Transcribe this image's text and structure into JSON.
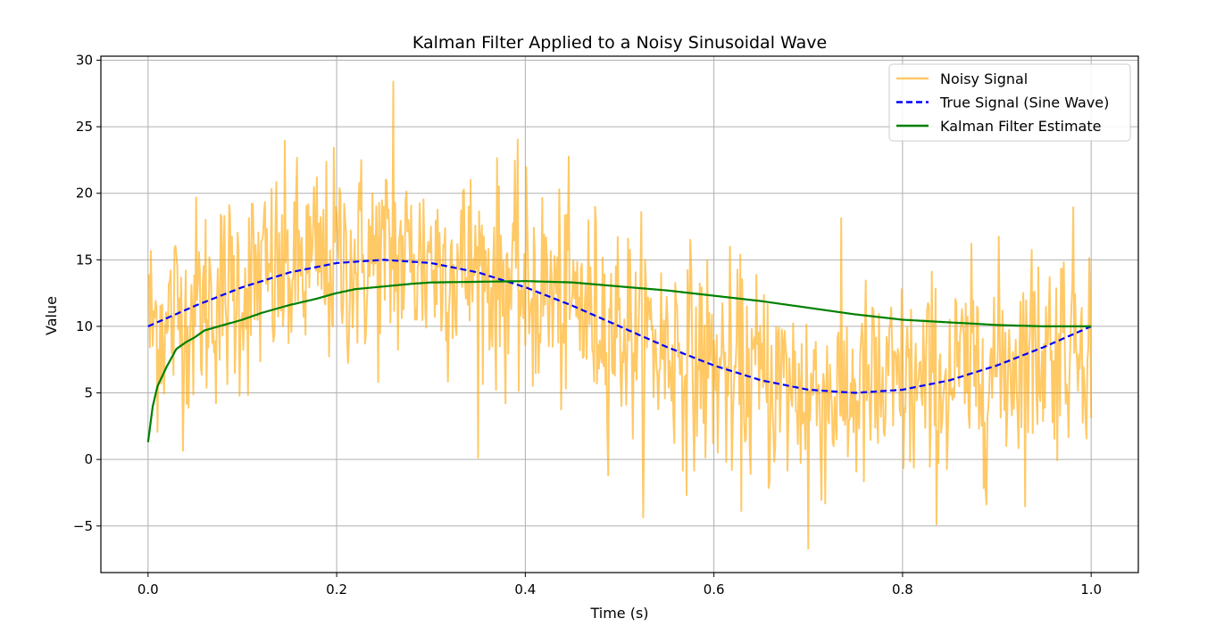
{
  "chart_data": {
    "type": "line",
    "title": "Kalman Filter Applied to a Noisy Sinusoidal Wave",
    "xlabel": "Time (s)",
    "ylabel": "Value",
    "xlim": [
      -0.05,
      1.05
    ],
    "ylim": [
      -8.5,
      30.3
    ],
    "xticks": [
      0.0,
      0.2,
      0.4,
      0.6,
      0.8,
      1.0
    ],
    "xtick_labels": [
      "0.0",
      "0.2",
      "0.4",
      "0.6",
      "0.8",
      "1.0"
    ],
    "yticks": [
      -5,
      0,
      5,
      10,
      15,
      20,
      25,
      30
    ],
    "ytick_labels": [
      "−5",
      "0",
      "5",
      "10",
      "15",
      "20",
      "25",
      "30"
    ],
    "grid": true,
    "legend_position": "top-right",
    "series": [
      {
        "name": "Noisy Signal",
        "color": "#FFA500",
        "opacity": 0.6,
        "style": "solid",
        "noise_sd": 4.0,
        "x": [
          0.0,
          0.02,
          0.04,
          0.06,
          0.08,
          0.1,
          0.12,
          0.14,
          0.16,
          0.18,
          0.2,
          0.22,
          0.24,
          0.26,
          0.28,
          0.3,
          0.32,
          0.34,
          0.36,
          0.38,
          0.4,
          0.42,
          0.44,
          0.46,
          0.48,
          0.5,
          0.52,
          0.54,
          0.56,
          0.58,
          0.6,
          0.62,
          0.64,
          0.66,
          0.68,
          0.7,
          0.72,
          0.74,
          0.76,
          0.78,
          0.8,
          0.82,
          0.84,
          0.86,
          0.88,
          0.9,
          0.92,
          0.94,
          0.96,
          0.98,
          1.0
        ],
        "y": [
          13.8,
          9.5,
          14.2,
          10.3,
          15.1,
          11.0,
          16.4,
          12.0,
          17.2,
          13.1,
          18.5,
          14.0,
          16.8,
          28.4,
          13.2,
          17.5,
          12.6,
          19.0,
          11.8,
          15.3,
          8.6,
          16.9,
          10.2,
          14.7,
          7.8,
          12.1,
          9.4,
          6.3,
          11.8,
          4.9,
          8.9,
          3.2,
          9.8,
          4.4,
          7.6,
          -6.7,
          8.5,
          3.6,
          9.2,
          2.1,
          10.4,
          4.8,
          7.9,
          5.5,
          11.3,
          6.2,
          9.0,
          12.6,
          7.4,
          13.1,
          3.1
        ]
      },
      {
        "name": "True Signal (Sine Wave)",
        "color": "#0000FF",
        "style": "dashed",
        "x": [
          0.0,
          0.05,
          0.1,
          0.15,
          0.2,
          0.25,
          0.3,
          0.35,
          0.4,
          0.45,
          0.5,
          0.55,
          0.6,
          0.65,
          0.7,
          0.75,
          0.8,
          0.85,
          0.9,
          0.95,
          1.0
        ],
        "y": [
          10.0,
          11.55,
          12.94,
          14.05,
          14.76,
          15.0,
          14.76,
          14.05,
          12.94,
          11.55,
          10.0,
          8.45,
          7.06,
          5.95,
          5.24,
          5.0,
          5.24,
          5.95,
          7.06,
          8.45,
          10.0
        ]
      },
      {
        "name": "Kalman Filter Estimate",
        "color": "#008000",
        "style": "solid",
        "x": [
          0.0,
          0.005,
          0.01,
          0.02,
          0.03,
          0.04,
          0.05,
          0.06,
          0.08,
          0.1,
          0.12,
          0.15,
          0.18,
          0.2,
          0.22,
          0.25,
          0.28,
          0.3,
          0.35,
          0.4,
          0.45,
          0.5,
          0.55,
          0.6,
          0.65,
          0.7,
          0.75,
          0.8,
          0.85,
          0.9,
          0.95,
          1.0
        ],
        "y": [
          1.3,
          4.0,
          5.5,
          7.0,
          8.3,
          8.8,
          9.2,
          9.7,
          10.1,
          10.5,
          11.0,
          11.6,
          12.1,
          12.5,
          12.8,
          13.0,
          13.2,
          13.3,
          13.35,
          13.4,
          13.3,
          13.0,
          12.7,
          12.3,
          11.9,
          11.4,
          10.9,
          10.5,
          10.3,
          10.1,
          10.0,
          10.0
        ]
      }
    ]
  }
}
